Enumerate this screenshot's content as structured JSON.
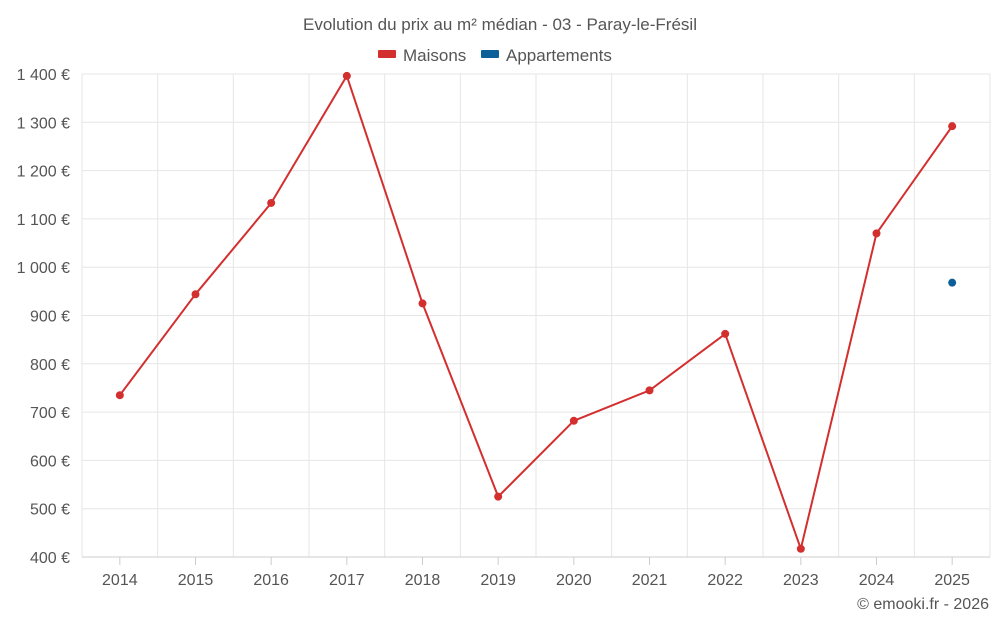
{
  "chart_data": {
    "type": "line",
    "title": "Evolution du prix au m² médian - 03 - Paray-le-Frésil",
    "categories": [
      "2014",
      "2015",
      "2016",
      "2017",
      "2018",
      "2019",
      "2020",
      "2021",
      "2022",
      "2023",
      "2024",
      "2025"
    ],
    "ylim": [
      400,
      1400
    ],
    "yticks": [
      400,
      500,
      600,
      700,
      800,
      900,
      1000,
      1100,
      1200,
      1300,
      1400
    ],
    "ytick_labels": [
      "400 €",
      "500 €",
      "600 €",
      "700 €",
      "800 €",
      "900 €",
      "1 000 €",
      "1 100 €",
      "1 200 €",
      "1 300 €",
      "1 400 €"
    ],
    "grid": true,
    "legend_position": "top-center",
    "series": [
      {
        "name": "Maisons",
        "color": "#d32f2f",
        "values": [
          735,
          944,
          1133,
          1396,
          925,
          525,
          682,
          745,
          862,
          417,
          1070,
          1292
        ]
      },
      {
        "name": "Appartements",
        "color": "#0d5f9a",
        "values": [
          null,
          null,
          null,
          null,
          null,
          null,
          null,
          null,
          null,
          null,
          null,
          968
        ]
      }
    ],
    "credit": "© emooki.fr - 2026"
  }
}
